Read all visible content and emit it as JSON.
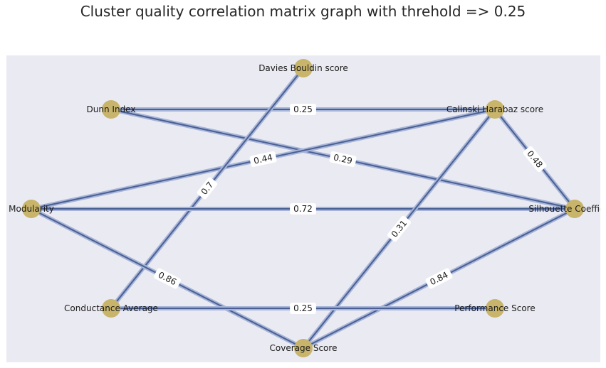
{
  "title": "Cluster quality correlation matrix graph with threhold => 0.25",
  "colors": {
    "background": "#eaeaf2",
    "node": "#c8b46a",
    "edge_outer": "#a6b4d8",
    "edge_inner": "#4a5f93",
    "label_box": "#ffffff"
  },
  "graph": {
    "nodes": [
      {
        "id": "davies",
        "label": "Davies Bouldin score"
      },
      {
        "id": "dunn",
        "label": "Dunn Index"
      },
      {
        "id": "calinski",
        "label": "Calinski Harabaz score"
      },
      {
        "id": "modularity",
        "label": "Modularity"
      },
      {
        "id": "silhouette",
        "label": "Silhouette Coefficient"
      },
      {
        "id": "conductance",
        "label": "Conductance Average"
      },
      {
        "id": "performance",
        "label": "Performance Score"
      },
      {
        "id": "coverage",
        "label": "Coverage Score"
      }
    ],
    "edges": [
      {
        "source": "dunn",
        "target": "calinski",
        "weight": "0.25"
      },
      {
        "source": "dunn",
        "target": "silhouette",
        "weight": "0.29"
      },
      {
        "source": "modularity",
        "target": "calinski",
        "weight": "0.44"
      },
      {
        "source": "calinski",
        "target": "silhouette",
        "weight": "0.48"
      },
      {
        "source": "conductance",
        "target": "davies",
        "weight": "0.7"
      },
      {
        "source": "modularity",
        "target": "silhouette",
        "weight": "0.72"
      },
      {
        "source": "calinski",
        "target": "coverage",
        "weight": "0.31"
      },
      {
        "source": "modularity",
        "target": "coverage",
        "weight": "0.86"
      },
      {
        "source": "coverage",
        "target": "silhouette",
        "weight": "0.84"
      },
      {
        "source": "conductance",
        "target": "performance",
        "weight": "0.25"
      }
    ]
  }
}
